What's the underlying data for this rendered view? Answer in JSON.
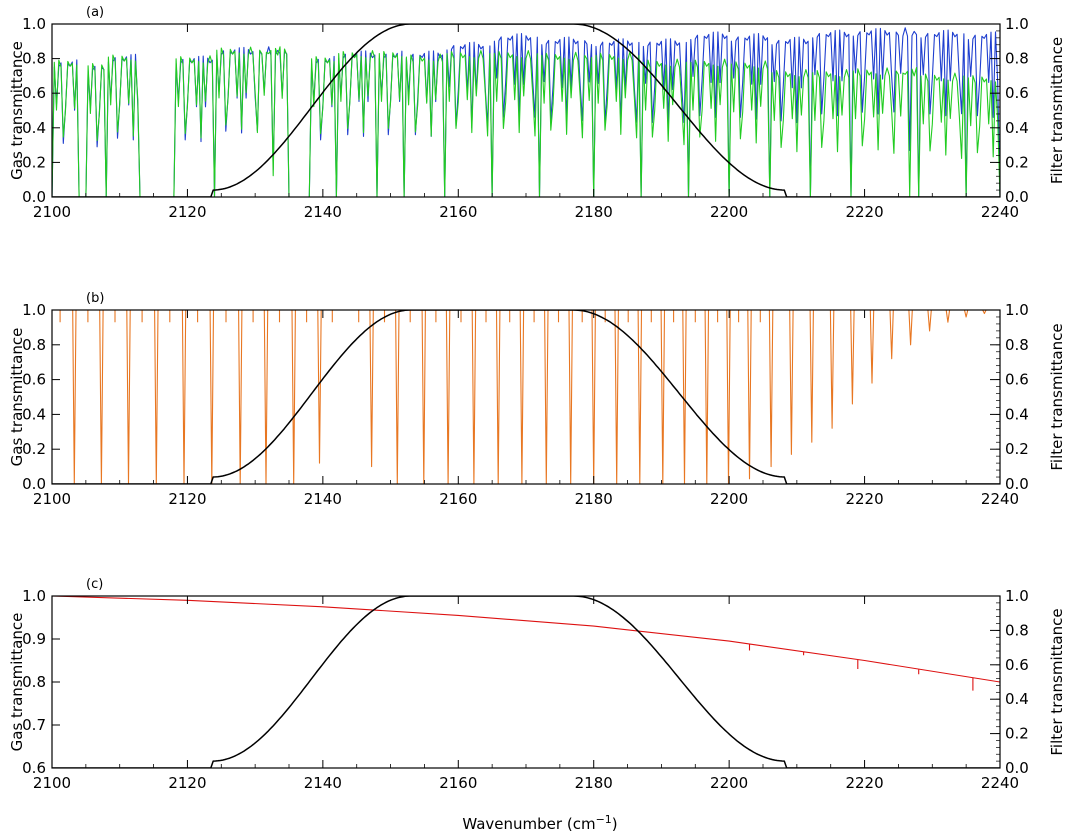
{
  "figure": {
    "xlabel_main": "Wavenumber (cm",
    "xlabel_sup": "−1",
    "xlabel_tail": ")"
  },
  "chart_data": [
    {
      "type": "line",
      "panel_label": "(a)",
      "ylabel": "Gas transmittance",
      "ylabel_right": "Filter transmittance",
      "xlim": [
        2100,
        2240
      ],
      "ylim": [
        0.0,
        1.0
      ],
      "ylim_right": [
        0.0,
        1.0
      ],
      "x_ticks": [
        "2100",
        "2120",
        "2140",
        "2160",
        "2180",
        "2200",
        "2220",
        "2240"
      ],
      "y_ticks": [
        "0.0",
        "0.2",
        "0.4",
        "0.6",
        "0.8",
        "1.0"
      ],
      "y_ticks_right": [
        "0.0",
        "0.2",
        "0.4",
        "0.6",
        "0.8",
        "1.0"
      ],
      "series": [
        {
          "color": "#1f3fcf",
          "axis": "left",
          "segments": [
            [
              2100,
              2104,
              0.8
            ],
            [
              2105,
              2108,
              0.78
            ],
            [
              2108,
              2113,
              0.83
            ],
            [
              2113,
              2119,
              0.0
            ],
            [
              2118,
              2124,
              0.82
            ],
            [
              2124,
              2135,
              0.87
            ],
            [
              2136,
              2138,
              0.0
            ],
            [
              2138,
              2142,
              0.82
            ],
            [
              2142,
              2148,
              0.85
            ],
            [
              2148,
              2152,
              0.85
            ],
            [
              2152,
              2158,
              0.85
            ],
            [
              2158,
              2165,
              0.9
            ],
            [
              2165,
              2172,
              0.95
            ],
            [
              2172,
              2180,
              0.93
            ],
            [
              2180,
              2187,
              0.92
            ],
            [
              2187,
              2194,
              0.92
            ],
            [
              2194,
              2200,
              0.96
            ],
            [
              2200,
              2206,
              0.95
            ],
            [
              2206,
              2212,
              0.93
            ],
            [
              2212,
              2218,
              0.97
            ],
            [
              2218,
              2228,
              0.98
            ],
            [
              2228,
              2235,
              0.97
            ],
            [
              2235,
              2240,
              0.96
            ]
          ]
        },
        {
          "color": "#22cc22",
          "axis": "left",
          "segments": [
            [
              2100,
              2104,
              0.8
            ],
            [
              2105,
              2108,
              0.78
            ],
            [
              2108,
              2113,
              0.83
            ],
            [
              2113,
              2119,
              0.0
            ],
            [
              2118,
              2124,
              0.82
            ],
            [
              2124,
              2135,
              0.87
            ],
            [
              2136,
              2138,
              0.0
            ],
            [
              2138,
              2142,
              0.82
            ],
            [
              2142,
              2148,
              0.85
            ],
            [
              2148,
              2152,
              0.85
            ],
            [
              2152,
              2158,
              0.83
            ],
            [
              2158,
              2165,
              0.85
            ],
            [
              2165,
              2172,
              0.85
            ],
            [
              2172,
              2180,
              0.84
            ],
            [
              2180,
              2187,
              0.84
            ],
            [
              2187,
              2194,
              0.8
            ],
            [
              2194,
              2200,
              0.8
            ],
            [
              2200,
              2206,
              0.79
            ],
            [
              2206,
              2212,
              0.74
            ],
            [
              2212,
              2218,
              0.74
            ],
            [
              2218,
              2228,
              0.75
            ],
            [
              2228,
              2235,
              0.72
            ],
            [
              2235,
              2240,
              0.71
            ]
          ]
        },
        {
          "color": "#000000",
          "axis": "right",
          "filter": {
            "x0": 2123.7,
            "x1": 2208.3,
            "flat_start": 2153,
            "flat_end": 2177,
            "edge": 0.04
          }
        }
      ]
    },
    {
      "type": "line",
      "panel_label": "(b)",
      "ylabel": "Gas transmittance",
      "ylabel_right": "Filter transmittance",
      "xlim": [
        2100,
        2240
      ],
      "ylim": [
        0.0,
        1.0
      ],
      "ylim_right": [
        0.0,
        1.0
      ],
      "x_ticks": [
        "2100",
        "2120",
        "2140",
        "2160",
        "2180",
        "2200",
        "2220",
        "2240"
      ],
      "y_ticks": [
        "0.0",
        "0.2",
        "0.4",
        "0.6",
        "0.8",
        "1.0"
      ],
      "y_ticks_right": [
        "0.0",
        "0.2",
        "0.4",
        "0.6",
        "0.8",
        "1.0"
      ],
      "series": [
        {
          "color": "#e87722",
          "axis": "left",
          "lines": [
            [
              2103.3,
              0.0
            ],
            [
              2107.3,
              0.0
            ],
            [
              2111.3,
              0.0
            ],
            [
              2115.4,
              0.0
            ],
            [
              2119.5,
              0.0
            ],
            [
              2123.6,
              0.0
            ],
            [
              2127.8,
              0.0
            ],
            [
              2131.6,
              0.0
            ],
            [
              2135.7,
              0.0
            ],
            [
              2139.5,
              0.12
            ],
            [
              2147.2,
              0.1
            ],
            [
              2151.0,
              0.0
            ],
            [
              2154.9,
              0.0
            ],
            [
              2158.5,
              0.0
            ],
            [
              2162.3,
              0.0
            ],
            [
              2165.9,
              0.0
            ],
            [
              2169.4,
              0.0
            ],
            [
              2173.0,
              0.0
            ],
            [
              2176.6,
              0.0
            ],
            [
              2180.0,
              0.0
            ],
            [
              2183.4,
              0.0
            ],
            [
              2186.8,
              0.0
            ],
            [
              2190.2,
              0.0
            ],
            [
              2193.4,
              0.0
            ],
            [
              2196.7,
              0.0
            ],
            [
              2199.9,
              0.0
            ],
            [
              2203.0,
              0.03
            ],
            [
              2206.2,
              0.1
            ],
            [
              2209.2,
              0.17
            ],
            [
              2212.2,
              0.24
            ],
            [
              2215.2,
              0.32
            ],
            [
              2218.2,
              0.46
            ],
            [
              2221.1,
              0.58
            ],
            [
              2224.0,
              0.72
            ],
            [
              2226.8,
              0.8
            ],
            [
              2229.6,
              0.88
            ],
            [
              2232.3,
              0.93
            ],
            [
              2235.0,
              0.96
            ],
            [
              2237.7,
              0.98
            ]
          ],
          "weak_lines": [
            2101.2,
            2105.3,
            2109.3,
            2113.3,
            2117.4,
            2121.5,
            2125.7,
            2129.7,
            2133.6,
            2137.6,
            2141.4,
            2145.3,
            2149.1,
            2152.9,
            2156.7,
            2160.4,
            2164.1,
            2167.6,
            2171.2,
            2174.8,
            2178.3,
            2181.7,
            2185.1,
            2188.5,
            2191.8,
            2195.0,
            2198.3,
            2201.4,
            2204.6
          ]
        },
        {
          "color": "#000000",
          "axis": "right",
          "filter": {
            "x0": 2123.7,
            "x1": 2208.3,
            "flat_start": 2153,
            "flat_end": 2177,
            "edge": 0.04
          }
        }
      ]
    },
    {
      "type": "line",
      "panel_label": "(c)",
      "ylabel": "Gas transmittance",
      "ylabel_right": "Filter transmittance",
      "xlim": [
        2100,
        2240
      ],
      "ylim": [
        0.6,
        1.0
      ],
      "ylim_right": [
        0.0,
        1.0
      ],
      "x_ticks": [
        "2100",
        "2120",
        "2140",
        "2160",
        "2180",
        "2200",
        "2220",
        "2240"
      ],
      "y_ticks": [
        "0.6",
        "0.7",
        "0.8",
        "0.9",
        "1.0"
      ],
      "y_ticks_right": [
        "0.0",
        "0.2",
        "0.4",
        "0.6",
        "0.8",
        "1.0"
      ],
      "series": [
        {
          "color": "#dd1111",
          "axis": "left",
          "points": [
            [
              2100,
              1.0
            ],
            [
              2120,
              0.99
            ],
            [
              2140,
              0.975
            ],
            [
              2160,
              0.955
            ],
            [
              2180,
              0.93
            ],
            [
              2200,
              0.895
            ],
            [
              2220,
              0.85
            ],
            [
              2240,
              0.8
            ]
          ],
          "spikes": [
            [
              2203,
              0.015
            ],
            [
              2211,
              0.008
            ],
            [
              2219,
              0.022
            ],
            [
              2228,
              0.012
            ],
            [
              2236,
              0.03
            ]
          ]
        },
        {
          "color": "#000000",
          "axis": "right",
          "filter": {
            "x0": 2123.7,
            "x1": 2208.3,
            "flat_start": 2153,
            "flat_end": 2177,
            "edge": 0.04
          }
        }
      ]
    }
  ]
}
